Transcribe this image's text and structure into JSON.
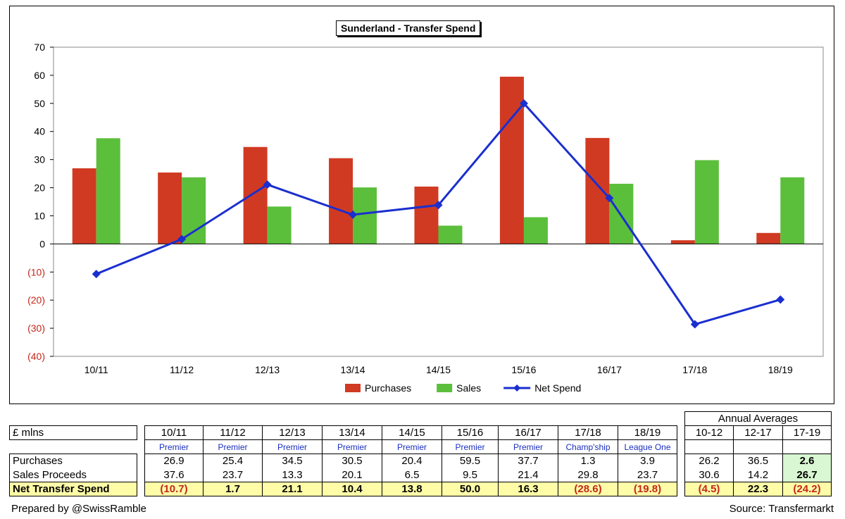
{
  "chart_data": {
    "type": "bar",
    "title": "Sunderland - Transfer Spend",
    "categories": [
      "10/11",
      "11/12",
      "12/13",
      "13/14",
      "14/15",
      "15/16",
      "16/17",
      "17/18",
      "18/19"
    ],
    "series": [
      {
        "name": "Purchases",
        "kind": "bar",
        "color": "#d13a22",
        "values": [
          26.9,
          25.4,
          34.5,
          30.5,
          20.4,
          59.5,
          37.7,
          1.3,
          3.9
        ]
      },
      {
        "name": "Sales",
        "kind": "bar",
        "color": "#5bbf3c",
        "values": [
          37.6,
          23.7,
          13.3,
          20.1,
          6.5,
          9.5,
          21.4,
          29.8,
          23.7
        ]
      },
      {
        "name": "Net Spend",
        "kind": "line",
        "color": "#1a2fcf",
        "values": [
          -10.7,
          1.7,
          21.1,
          10.4,
          13.8,
          50.0,
          16.3,
          -28.6,
          -19.8
        ]
      }
    ],
    "ylim": [
      -40,
      70
    ],
    "yticks": [
      70,
      60,
      50,
      40,
      30,
      20,
      10,
      0,
      -10,
      -20,
      -30,
      -40
    ],
    "ytick_labels": [
      "70",
      "60",
      "50",
      "40",
      "30",
      "20",
      "10",
      "0",
      "(10)",
      "(20)",
      "(30)",
      "(40)"
    ],
    "negative_tick_color": "#c4271b",
    "grid": false,
    "legend": "bottom"
  },
  "table": {
    "unit_label": "£ mlns",
    "averages_title": "Annual Averages",
    "seasons": [
      "10/11",
      "11/12",
      "12/13",
      "13/14",
      "14/15",
      "15/16",
      "16/17",
      "17/18",
      "18/19"
    ],
    "leagues": [
      "Premier",
      "Premier",
      "Premier",
      "Premier",
      "Premier",
      "Premier",
      "Premier",
      "Champ'ship",
      "League One"
    ],
    "avg_periods": [
      "10-12",
      "12-17",
      "17-19"
    ],
    "rows": [
      {
        "label": "Purchases",
        "values": [
          "26.9",
          "25.4",
          "34.5",
          "30.5",
          "20.4",
          "59.5",
          "37.7",
          "1.3",
          "3.9"
        ],
        "avgs": [
          "26.2",
          "36.5",
          "2.6"
        ]
      },
      {
        "label": "Sales Proceeds",
        "values": [
          "37.6",
          "23.7",
          "13.3",
          "20.1",
          "6.5",
          "9.5",
          "21.4",
          "29.8",
          "23.7"
        ],
        "avgs": [
          "30.6",
          "14.2",
          "26.7"
        ]
      },
      {
        "label": "Net Transfer Spend",
        "values": [
          "(10.7)",
          "1.7",
          "21.1",
          "10.4",
          "13.8",
          "50.0",
          "16.3",
          "(28.6)",
          "(19.8)"
        ],
        "avgs": [
          "(4.5)",
          "22.3",
          "(24.2)"
        ]
      }
    ]
  },
  "footer": {
    "left": "Prepared by @SwissRamble",
    "right": "Source: Transfermarkt"
  }
}
